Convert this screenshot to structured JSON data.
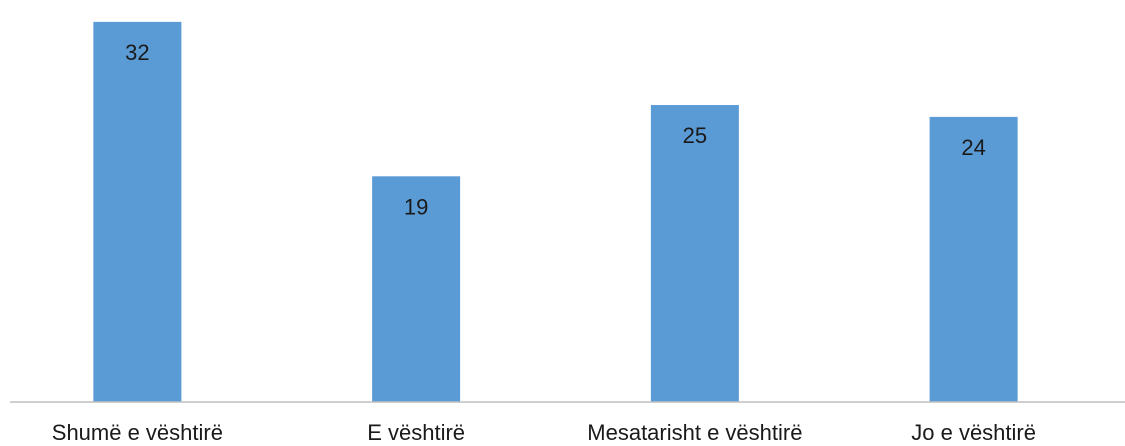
{
  "chart_data": {
    "type": "bar",
    "title": "",
    "xlabel": "",
    "ylabel": "",
    "categories": [
      "Shumë e vështirë",
      "E vështirë",
      "Mesatarisht e vështirë",
      "Jo e vështirë"
    ],
    "values": [
      32,
      19,
      25,
      24
    ],
    "ylim": [
      0,
      33
    ],
    "grid": false,
    "legend": "none",
    "colors": {
      "bar": "#5b9bd5",
      "axis": "#bfbfbf",
      "text": "#1a1a1a"
    }
  }
}
